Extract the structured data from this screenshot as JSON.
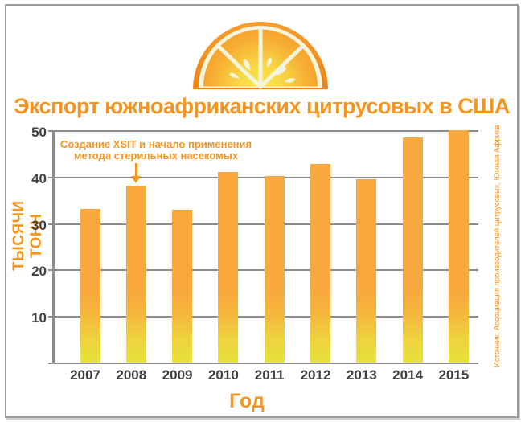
{
  "title": "Экспорт южноафриканских цитрусовых в США",
  "annotation": {
    "lines": [
      "Создание XSIT и начало применения",
      "метода стерильных насекомых"
    ],
    "target_year": "2008"
  },
  "source": "Источник: Ассоциация производителей цитрусовых, Южная Африка",
  "chart_data": {
    "type": "bar",
    "title": "Экспорт южноафриканских цитрусовых в США",
    "categories": [
      "2007",
      "2008",
      "2009",
      "2010",
      "2011",
      "2012",
      "2013",
      "2014",
      "2015"
    ],
    "values": [
      33.2,
      38.3,
      33.0,
      41.1,
      40.3,
      42.9,
      39.6,
      48.7,
      50.2
    ],
    "xlabel": "Год",
    "ylabel": "ТЫСЯЧИ ТОНН",
    "ylim": [
      0,
      50
    ],
    "yticks": [
      10,
      20,
      30,
      40,
      50
    ],
    "grid": true,
    "legend": false,
    "annotation": "Создание XSIT и начало применения метода стерильных насекомых",
    "annotation_target": "2008",
    "colors": {
      "accent_orange": "#F7941E",
      "bar_top": "#F8A73C",
      "bar_bottom": "#E8E33B",
      "gridline": "#8C8C8C",
      "axis_text": "#3F3F3F",
      "rind": "#F2891D",
      "pith": "#F3F4DC"
    }
  }
}
